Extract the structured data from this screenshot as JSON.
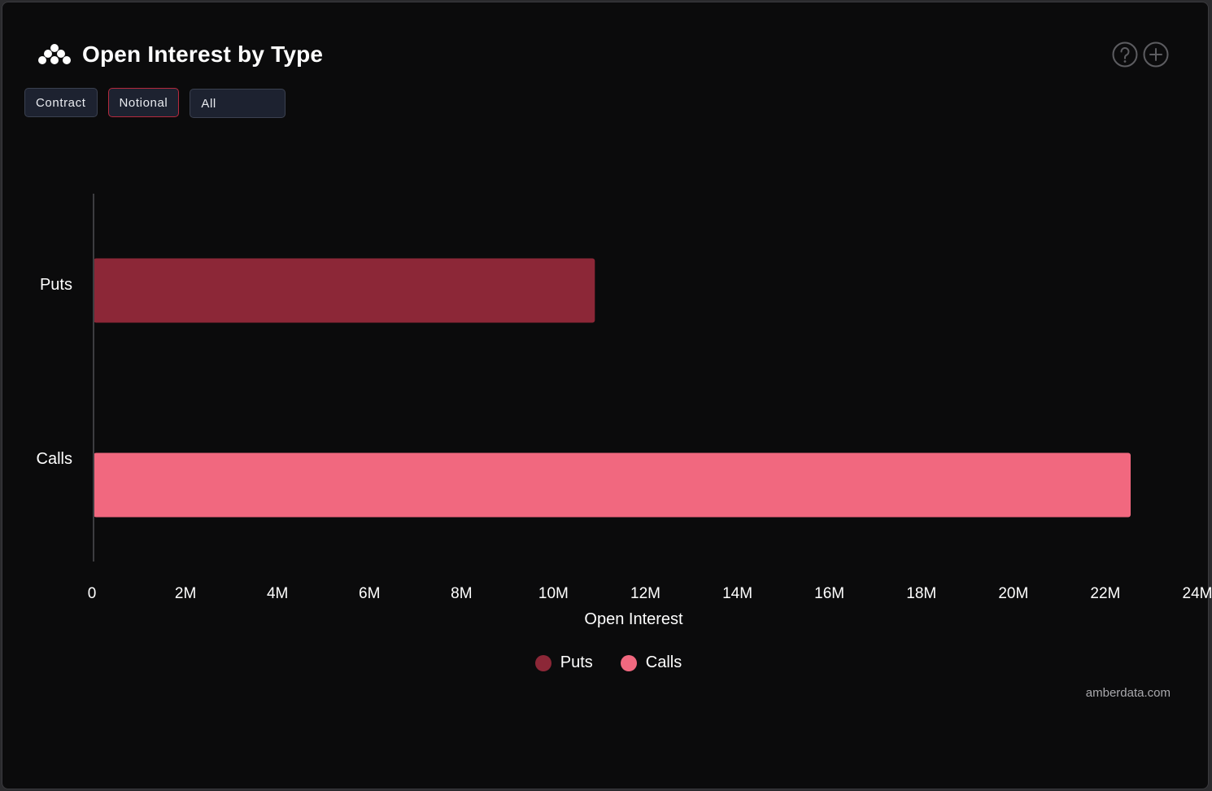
{
  "header": {
    "title": "Open Interest by Type",
    "logo_icon": "amberdata-logo-icon",
    "help_icon": "help-circle-icon",
    "add_icon": "plus-circle-icon"
  },
  "toggles": {
    "contract": "Contract",
    "notional": "Notional",
    "filter_value": "All",
    "active": "notional"
  },
  "chart_data": {
    "type": "bar",
    "orientation": "horizontal",
    "categories": [
      "Puts",
      "Calls"
    ],
    "values": [
      10900000,
      22550000
    ],
    "colors": [
      "#8c2737",
      "#f1687f"
    ],
    "xlabel": "Open Interest",
    "ylabel": "",
    "xlim": [
      0,
      24000000
    ],
    "x_ticks": [
      0,
      2000000,
      4000000,
      6000000,
      8000000,
      10000000,
      12000000,
      14000000,
      16000000,
      18000000,
      20000000,
      22000000,
      24000000
    ],
    "x_tick_labels": [
      "0",
      "2M",
      "4M",
      "6M",
      "8M",
      "10M",
      "12M",
      "14M",
      "16M",
      "18M",
      "20M",
      "22M",
      "24M"
    ],
    "grid": false,
    "legend": {
      "placement": "bottom-center",
      "entries": [
        {
          "label": "Puts",
          "color": "#8c2737"
        },
        {
          "label": "Calls",
          "color": "#f1687f"
        }
      ]
    }
  },
  "footer": {
    "credit": "amberdata.com"
  }
}
